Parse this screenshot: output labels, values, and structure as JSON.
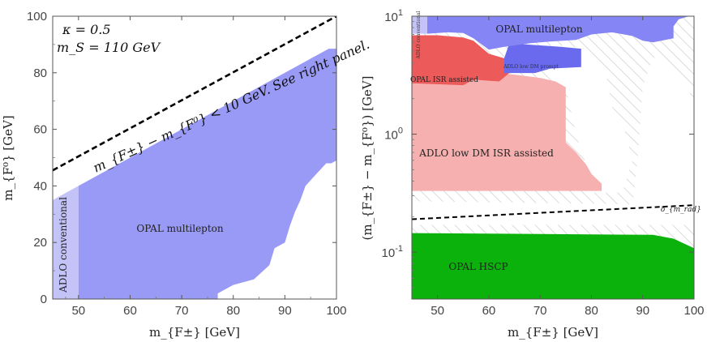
{
  "colors": {
    "opal_multilepton": "#9999f6",
    "adlo_conventional": "#c3c3f7",
    "opal_multilepton_right": "#8585f5",
    "adlo_low_dm_prompt": "#6a6aee",
    "opal_isr_assisted": "#ec5a5a",
    "adlo_low_dm_isr": "#f7b0b0",
    "opal_hscp": "#0bb20b",
    "hatch": "#cccccc",
    "dashed_line": "#000000"
  },
  "chart_data": [
    {
      "type": "area",
      "panel": "left",
      "xlabel": "m_{F±} [GeV]",
      "ylabel": "m_{F⁰} [GeV]",
      "xlim": [
        45,
        100
      ],
      "ylim": [
        0,
        100
      ],
      "xticks": [
        "50",
        "60",
        "70",
        "80",
        "90",
        "100"
      ],
      "yticks": [
        "0",
        "20",
        "40",
        "60",
        "80",
        "100"
      ],
      "annotations": {
        "kappa": "κ = 0.5",
        "ms": "m_S = 110 GeV",
        "diagonal": "m_{F±} − m_{F⁰} < 10 GeV. See right panel."
      },
      "dashed_line": {
        "x": [
          45,
          100
        ],
        "y": [
          45.5,
          100
        ]
      },
      "regions": [
        {
          "name": "ADLO conventional",
          "label": "ADLO conventional",
          "color_key": "adlo_conventional",
          "polygon": [
            [
              45,
              0
            ],
            [
              50,
              0
            ],
            [
              50,
              40
            ],
            [
              45,
              35
            ]
          ]
        },
        {
          "name": "OPAL multilepton",
          "label": "OPAL multilepton",
          "color_key": "opal_multilepton",
          "polygon": [
            [
              50,
              0
            ],
            [
              77,
              0
            ],
            [
              77,
              2
            ],
            [
              80,
              5
            ],
            [
              84,
              7
            ],
            [
              87,
              12
            ],
            [
              88,
              18
            ],
            [
              90,
              20
            ],
            [
              91,
              26
            ],
            [
              92,
              31
            ],
            [
              93,
              35
            ],
            [
              94,
              40
            ],
            [
              96,
              44
            ],
            [
              97,
              46
            ],
            [
              98,
              48
            ],
            [
              99,
              48
            ],
            [
              100,
              49
            ],
            [
              100,
              88.5
            ],
            [
              98.5,
              88.5
            ],
            [
              50,
              40
            ]
          ]
        }
      ]
    },
    {
      "type": "area",
      "panel": "right",
      "xlabel": "m_{F±} [GeV]",
      "ylabel": "(m_{F±} − m_{F⁰}) [GeV]",
      "xlim": [
        45,
        100
      ],
      "ylim": [
        0.04,
        10
      ],
      "yscale": "log",
      "xticks": [
        "50",
        "60",
        "70",
        "80",
        "90",
        "100"
      ],
      "yticks": [
        "10^{-1}",
        "10^{0}",
        "10^{1}"
      ],
      "dashed_line_label": "δ_{m_rad}",
      "dashed_line": {
        "x": [
          45,
          100
        ],
        "y": [
          0.19,
          0.25
        ]
      },
      "regions": [
        {
          "name": "OPAL HSCP",
          "label": "OPAL HSCP",
          "color_key": "opal_hscp",
          "polygon": [
            [
              45,
              0.04
            ],
            [
              100,
              0.04
            ],
            [
              100,
              0.108
            ],
            [
              96,
              0.13
            ],
            [
              92,
              0.14
            ],
            [
              45,
              0.145
            ]
          ]
        },
        {
          "name": "ADLO low DM ISR assisted",
          "label": "ADLO low DM ISR assisted",
          "color_key": "adlo_low_dm_isr",
          "polygon": [
            [
              45,
              0.33
            ],
            [
              82,
              0.33
            ],
            [
              82,
              0.38
            ],
            [
              80,
              0.46
            ],
            [
              79,
              0.55
            ],
            [
              77,
              0.7
            ],
            [
              75,
              0.85
            ],
            [
              75,
              2.5
            ],
            [
              73,
              2.8
            ],
            [
              70,
              3.0
            ],
            [
              65,
              3.2
            ],
            [
              60,
              3.3
            ],
            [
              55,
              3.4
            ],
            [
              50,
              3.5
            ],
            [
              45,
              3.5
            ]
          ]
        },
        {
          "name": "OPAL ISR assisted",
          "label": "OPAL ISR assisted",
          "color_key": "opal_isr_assisted",
          "polygon": [
            [
              45,
              2.7
            ],
            [
              55,
              2.6
            ],
            [
              57,
              2.9
            ],
            [
              62,
              2.8
            ],
            [
              64,
              3.3
            ],
            [
              63,
              4.4
            ],
            [
              60,
              4.8
            ],
            [
              57,
              6.2
            ],
            [
              55,
              6.6
            ],
            [
              50,
              6.9
            ],
            [
              45,
              6.9
            ]
          ]
        },
        {
          "name": "ADLO low DM prompt",
          "label": "ADLO low DM prompt",
          "color_key": "adlo_low_dm_prompt",
          "polygon": [
            [
              63,
              3.3
            ],
            [
              69,
              3.3
            ],
            [
              72,
              3.6
            ],
            [
              78,
              3.7
            ],
            [
              78,
              5.3
            ],
            [
              74,
              5.5
            ],
            [
              64,
              5.9
            ],
            [
              63,
              4.4
            ]
          ]
        },
        {
          "name": "OPAL multilepton",
          "label": "OPAL multilepton",
          "color_key": "opal_multilepton_right",
          "polygon": [
            [
              48,
              10
            ],
            [
              99,
              10
            ],
            [
              97,
              9.4
            ],
            [
              96,
              8.2
            ],
            [
              96,
              6.5
            ],
            [
              92,
              6.0
            ],
            [
              90,
              6.2
            ],
            [
              88,
              6.8
            ],
            [
              84,
              7.3
            ],
            [
              80,
              7.0
            ],
            [
              77,
              6.3
            ],
            [
              72,
              6.1
            ],
            [
              68,
              5.9
            ],
            [
              63,
              5.5
            ],
            [
              60,
              5.2
            ],
            [
              57,
              6.5
            ],
            [
              55,
              7.2
            ],
            [
              52,
              7.3
            ],
            [
              48,
              7.1
            ]
          ]
        },
        {
          "name": "ADLO conventional",
          "label": "ADLO conventional",
          "color_key": "adlo_conventional",
          "polygon": [
            [
              45,
              10
            ],
            [
              48,
              10
            ],
            [
              48,
              7.1
            ],
            [
              45,
              7.1
            ]
          ]
        }
      ]
    }
  ]
}
